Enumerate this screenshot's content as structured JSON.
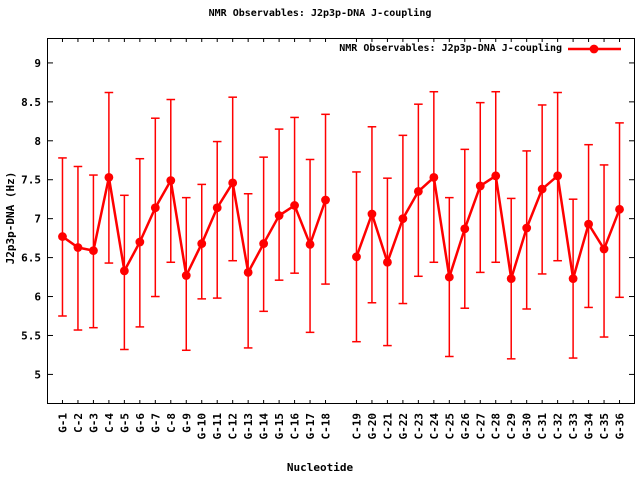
{
  "title": "NMR Observables: J2p3p-DNA J-coupling",
  "legend": {
    "label": "NMR Observables: J2p3p-DNA J-coupling"
  },
  "chart_data": {
    "type": "line",
    "subtype": "points-with-error-bars",
    "title": "NMR Observables: J2p3p-DNA J-coupling",
    "xlabel": "Nucleotide",
    "ylabel": "J2p3p-DNA (Hz)",
    "legend_position": "top-right-inside",
    "grid": false,
    "ylim": [
      4.62,
      9.32
    ],
    "ytick_values": [
      5,
      5.5,
      6,
      6.5,
      7,
      7.5,
      8,
      8.5,
      9
    ],
    "ytick_labels": [
      "5",
      "5.5",
      "6",
      "6.5",
      "7",
      "7.5",
      "8",
      "8.5",
      "9"
    ],
    "gap_after_index": 17,
    "categories": [
      "G-1",
      "C-2",
      "G-3",
      "C-4",
      "G-5",
      "G-6",
      "G-7",
      "C-8",
      "G-9",
      "G-10",
      "G-11",
      "C-12",
      "G-13",
      "G-14",
      "G-15",
      "C-16",
      "G-17",
      "C-18",
      "C-19",
      "G-20",
      "C-21",
      "G-22",
      "C-23",
      "C-24",
      "C-25",
      "G-26",
      "C-27",
      "C-28",
      "C-29",
      "G-30",
      "C-31",
      "C-32",
      "C-33",
      "G-34",
      "C-35",
      "G-36"
    ],
    "series": [
      {
        "name": "NMR Observables: J2p3p-DNA J-coupling",
        "color": "#ff0000",
        "values": [
          6.77,
          6.63,
          6.59,
          7.53,
          6.33,
          6.7,
          7.14,
          7.49,
          6.27,
          6.68,
          7.14,
          7.46,
          6.31,
          6.68,
          7.04,
          7.17,
          6.67,
          7.24,
          6.51,
          7.06,
          6.44,
          7.0,
          7.35,
          7.53,
          6.25,
          6.87,
          7.42,
          7.55,
          6.23,
          6.88,
          7.38,
          7.55,
          6.23,
          6.93,
          6.61,
          7.12
        ],
        "err_low": [
          5.75,
          5.57,
          5.6,
          6.43,
          5.32,
          5.61,
          6.0,
          6.44,
          5.31,
          5.97,
          5.98,
          6.46,
          5.34,
          5.81,
          6.21,
          6.3,
          5.54,
          6.16,
          5.42,
          5.92,
          5.37,
          5.91,
          6.26,
          6.44,
          5.23,
          5.85,
          6.31,
          6.44,
          5.2,
          5.84,
          6.29,
          6.46,
          5.21,
          5.86,
          5.48,
          5.99
        ],
        "err_high": [
          7.78,
          7.67,
          7.56,
          8.62,
          7.3,
          7.77,
          8.29,
          8.53,
          7.27,
          7.44,
          7.99,
          8.56,
          7.32,
          7.79,
          8.15,
          8.3,
          7.76,
          8.34,
          7.6,
          8.18,
          7.52,
          8.07,
          8.47,
          8.63,
          7.27,
          7.89,
          8.49,
          8.63,
          7.26,
          7.87,
          8.46,
          8.62,
          7.25,
          7.95,
          7.69,
          8.23
        ]
      }
    ],
    "colors": {
      "series": "#ff0000",
      "axis": "#000000",
      "background": "#ffffff"
    }
  }
}
